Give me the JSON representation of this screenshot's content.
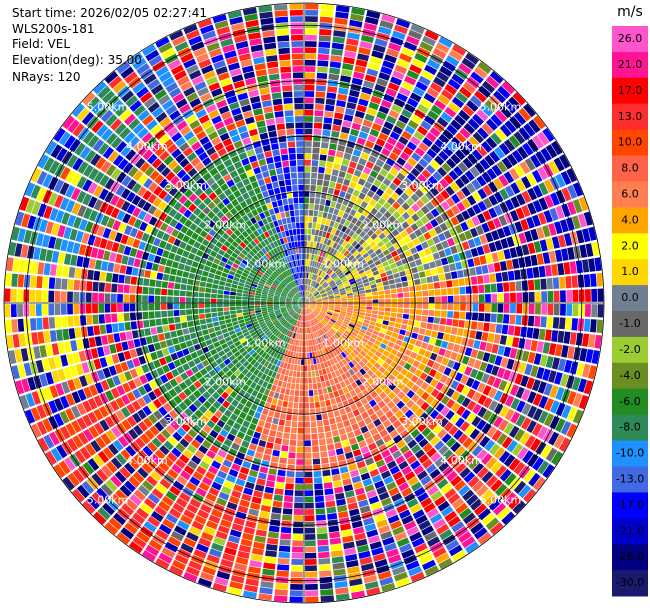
{
  "header": {
    "start_time": "Start time: 2026/02/05 02:27:41",
    "instrument": "WLS200s-181",
    "field": "Field: VEL",
    "elevation": "Elevation(deg): 35.00",
    "nrays": "NRays: 120"
  },
  "colorbar": {
    "unit": "m/s",
    "ticks": [
      "26.0",
      "21.0",
      "17.0",
      "13.0",
      "10.0",
      "8.0",
      "6.0",
      "4.0",
      "2.0",
      "1.0",
      "0.0",
      "-1.0",
      "-2.0",
      "-4.0",
      "-6.0",
      "-8.0",
      "-10.0",
      "-13.0",
      "-17.0",
      "-21.0",
      "-26.0",
      "-30.0"
    ],
    "colors": [
      "#ff55cc",
      "#ff1493",
      "#ff0000",
      "#ff2d2d",
      "#ff4500",
      "#ff6347",
      "#ff7f50",
      "#ffa500",
      "#ffff00",
      "#ffd700",
      "#708090",
      "#696969",
      "#9acd32",
      "#6b8e23",
      "#228b22",
      "#2e8b57",
      "#1e90ff",
      "#4169e1",
      "#0000ff",
      "#0000cd",
      "#000080",
      "#191970"
    ]
  },
  "chart_data": {
    "type": "heatmap",
    "projection": "polar",
    "field": "VEL",
    "nrays": 120,
    "elevation_deg": 35.0,
    "range_max_km": 5.4,
    "range_rings_km": [
      1.0,
      2.0,
      3.0,
      4.0,
      5.0
    ],
    "ring_labels": [
      "1.00km",
      "2.00km",
      "3.00km",
      "4.00km",
      "5.00km"
    ],
    "vmin": -30.0,
    "vmax": 30.0,
    "near_field_pattern": [
      {
        "azimuth_from_deg": 200,
        "azimuth_to_deg": 340,
        "range_to_km": 3.0,
        "value_ms": -6.0
      },
      {
        "azimuth_from_deg": 340,
        "azimuth_to_deg": 360,
        "range_to_km": 3.0,
        "value_ms": -13.0
      },
      {
        "azimuth_from_deg": 0,
        "azimuth_to_deg": 80,
        "range_to_km": 3.0,
        "value_ms": 0.0
      },
      {
        "azimuth_from_deg": 80,
        "azimuth_to_deg": 140,
        "range_to_km": 3.0,
        "value_ms": 6.0
      },
      {
        "azimuth_from_deg": 140,
        "azimuth_to_deg": 200,
        "range_to_km": 3.0,
        "value_ms": 8.0
      },
      {
        "azimuth_from_deg": 230,
        "azimuth_to_deg": 260,
        "range_to_km": 2.5,
        "value_ms": 2.0
      }
    ],
    "far_field_pattern": [
      {
        "azimuth_from_deg": 280,
        "azimuth_to_deg": 320,
        "range_from_km": 4.2,
        "value_ms": -8.0
      },
      {
        "azimuth_from_deg": 320,
        "azimuth_to_deg": 330,
        "range_from_km": 4.0,
        "value_ms": -10.0
      },
      {
        "azimuth_from_deg": 250,
        "azimuth_to_deg": 280,
        "range_from_km": 4.0,
        "value_ms": 2.0
      },
      {
        "azimuth_from_deg": 190,
        "azimuth_to_deg": 250,
        "range_from_km": 3.5,
        "value_ms": 13.0
      },
      {
        "azimuth_from_deg": 40,
        "azimuth_to_deg": 80,
        "range_from_km": 3.5,
        "value_ms": -21.0
      }
    ]
  }
}
